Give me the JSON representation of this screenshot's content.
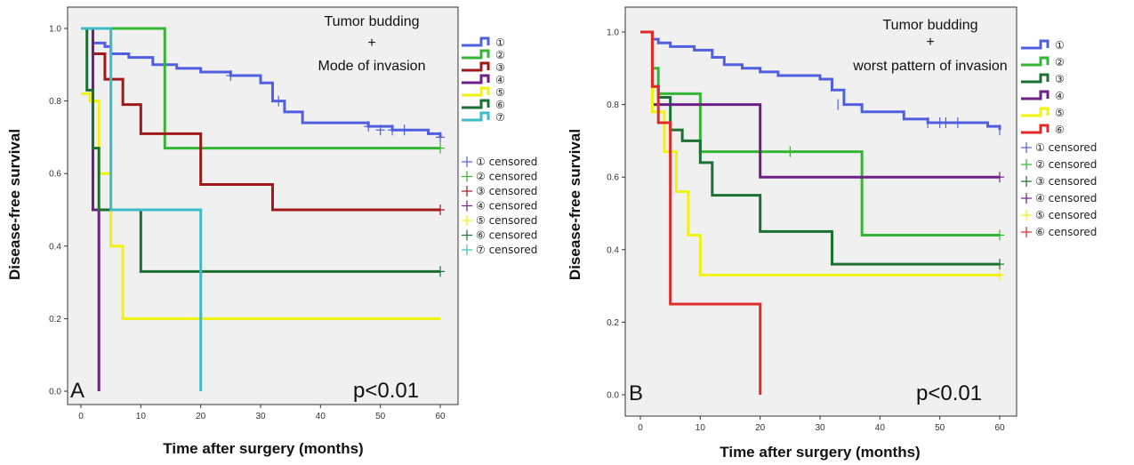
{
  "chart_data": [
    {
      "type": "line",
      "panel_label": "A",
      "xlabel": "Time after surgery (months)",
      "ylabel": "Disease-free survival",
      "xlim": [
        0,
        60
      ],
      "ylim": [
        0,
        1
      ],
      "xticks": [
        "0",
        "10",
        "20",
        "30",
        "40",
        "50",
        "60"
      ],
      "yticks": [
        "0.0",
        "0.2",
        "0.4",
        "0.6",
        "0.8",
        "1.0"
      ],
      "annotation_lines": [
        "Tumor budding",
        "+",
        "Mode of invasion"
      ],
      "pvalue": "p<0.01",
      "legend_position": "right",
      "legend_lines": [
        "①",
        "②",
        "③",
        "④",
        "⑤",
        "⑥",
        "⑦"
      ],
      "legend_censored": [
        "① censored",
        "② censored",
        "③ censored",
        "④ censored",
        "⑤ censored",
        "⑥ censored",
        "⑦ censored"
      ],
      "series": [
        {
          "color": "#4f5fe0",
          "x": [
            0,
            2,
            4,
            5,
            8,
            12,
            16,
            20,
            25,
            30,
            32,
            34,
            37,
            48,
            52,
            58,
            60
          ],
          "y": [
            1.0,
            0.96,
            0.95,
            0.93,
            0.92,
            0.9,
            0.89,
            0.88,
            0.87,
            0.85,
            0.8,
            0.77,
            0.74,
            0.73,
            0.72,
            0.71,
            0.7
          ],
          "censor_x": [
            25,
            33,
            48,
            50,
            52,
            54,
            60
          ],
          "censor_y": [
            0.87,
            0.8,
            0.73,
            0.72,
            0.72,
            0.72,
            0.7
          ]
        },
        {
          "color": "#34b534",
          "x": [
            0,
            14,
            60
          ],
          "y": [
            1.0,
            0.67,
            0.67
          ],
          "censor_x": [
            60
          ],
          "censor_y": [
            0.67
          ]
        },
        {
          "color": "#a01818",
          "x": [
            0,
            2,
            4,
            7,
            10,
            12,
            20,
            32,
            60
          ],
          "y": [
            1.0,
            0.93,
            0.86,
            0.79,
            0.71,
            0.71,
            0.57,
            0.5,
            0.5
          ],
          "censor_x": [
            60
          ],
          "censor_y": [
            0.5
          ]
        },
        {
          "color": "#6e1f87",
          "x": [
            0,
            2,
            3
          ],
          "y": [
            1.0,
            0.5,
            0.0
          ],
          "censor_x": [],
          "censor_y": []
        },
        {
          "color": "#f2f20f",
          "x": [
            0,
            1.5,
            3,
            5,
            7,
            60
          ],
          "y": [
            0.82,
            0.8,
            0.6,
            0.4,
            0.2,
            0.2
          ],
          "censor_x": [],
          "censor_y": []
        },
        {
          "color": "#1b6f30",
          "x": [
            0,
            1,
            2,
            3,
            10,
            60
          ],
          "y": [
            1.0,
            0.83,
            0.67,
            0.5,
            0.33,
            0.33
          ],
          "censor_x": [
            60
          ],
          "censor_y": [
            0.33
          ]
        },
        {
          "color": "#3cbcc4",
          "x": [
            0,
            5,
            20,
            20.01
          ],
          "y": [
            1.0,
            0.5,
            0.5,
            0.0
          ],
          "censor_x": [],
          "censor_y": []
        }
      ]
    },
    {
      "type": "line",
      "panel_label": "B",
      "xlabel": "Time after surgery (months)",
      "ylabel": "Disease-free survival",
      "xlim": [
        0,
        60
      ],
      "ylim": [
        0,
        1
      ],
      "xticks": [
        "0",
        "10",
        "20",
        "30",
        "40",
        "50",
        "60"
      ],
      "yticks": [
        "0.0",
        "0.2",
        "0.4",
        "0.6",
        "0.8",
        "1.0"
      ],
      "annotation_lines": [
        "Tumor budding",
        "+",
        "worst pattern of invasion"
      ],
      "pvalue": "p<0.01",
      "legend_position": "right",
      "legend_lines": [
        "①",
        "②",
        "③",
        "④",
        "⑤",
        "⑥"
      ],
      "legend_censored": [
        "① censored",
        "② censored",
        "③ censored",
        "④ censored",
        "⑤ censored",
        "⑥ censored"
      ],
      "series": [
        {
          "color": "#4f5fe0",
          "x": [
            0,
            2,
            3,
            5,
            9,
            12,
            14,
            17,
            20,
            23,
            30,
            32,
            34,
            37,
            44,
            48,
            53,
            58,
            60
          ],
          "y": [
            1.0,
            0.98,
            0.97,
            0.96,
            0.95,
            0.93,
            0.91,
            0.9,
            0.89,
            0.88,
            0.87,
            0.84,
            0.8,
            0.78,
            0.76,
            0.75,
            0.75,
            0.74,
            0.73
          ],
          "censor_x": [
            33,
            48,
            50,
            51,
            53,
            60
          ],
          "censor_y": [
            0.8,
            0.75,
            0.75,
            0.75,
            0.75,
            0.73
          ],
          "censor_style": "bracket"
        },
        {
          "color": "#34b534",
          "x": [
            0,
            2,
            3,
            10,
            37,
            60
          ],
          "y": [
            1.0,
            0.9,
            0.83,
            0.67,
            0.44,
            0.44
          ],
          "censor_x": [
            25,
            60
          ],
          "censor_y": [
            0.67,
            0.44
          ]
        },
        {
          "color": "#1b6f30",
          "x": [
            0,
            2,
            3,
            5,
            7,
            10,
            12,
            15,
            20,
            32,
            60
          ],
          "y": [
            1.0,
            0.85,
            0.82,
            0.73,
            0.7,
            0.64,
            0.55,
            0.55,
            0.45,
            0.36,
            0.36
          ],
          "censor_x": [
            60
          ],
          "censor_y": [
            0.36
          ]
        },
        {
          "color": "#6e1f87",
          "x": [
            0,
            2,
            20,
            60
          ],
          "y": [
            1.0,
            0.8,
            0.6,
            0.6
          ],
          "censor_x": [
            60
          ],
          "censor_y": [
            0.6
          ]
        },
        {
          "color": "#f2f20f",
          "x": [
            0,
            2,
            4,
            6,
            8,
            10,
            60
          ],
          "y": [
            1.0,
            0.78,
            0.67,
            0.56,
            0.44,
            0.33,
            0.33
          ],
          "censor_x": [
            60
          ],
          "censor_y": [
            0.33
          ]
        },
        {
          "color": "#e02a2a",
          "x": [
            0,
            2,
            3,
            5,
            20,
            20.01
          ],
          "y": [
            1.0,
            0.85,
            0.75,
            0.25,
            0.25,
            0.0
          ],
          "censor_x": [],
          "censor_y": []
        }
      ]
    }
  ]
}
